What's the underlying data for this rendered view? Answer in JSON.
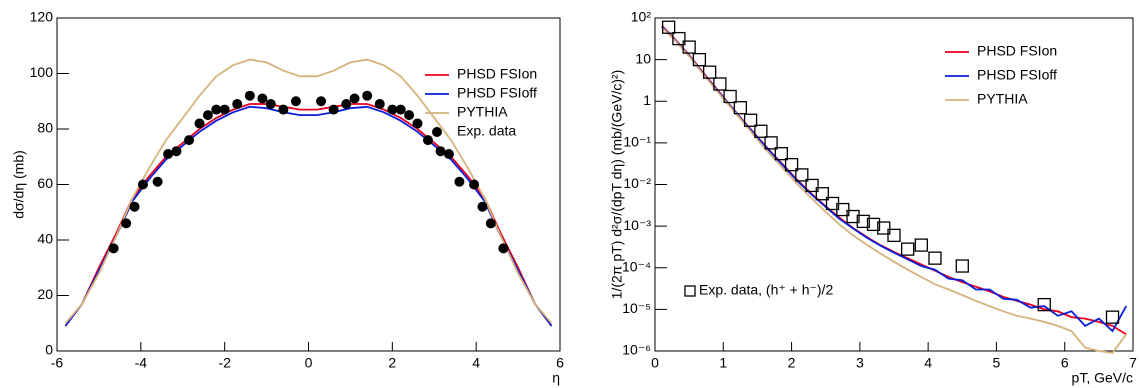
{
  "chart_data": [
    {
      "type": "line",
      "xlabel": "η",
      "ylabel": "dσ/dη (mb)",
      "xlim": [
        -6,
        6
      ],
      "xticks": [
        -6,
        -4,
        -2,
        0,
        2,
        4,
        6
      ],
      "ylim": [
        0,
        120
      ],
      "yticks": [
        0,
        20,
        40,
        60,
        80,
        100,
        120
      ],
      "legend": "upper right",
      "series": [
        {
          "name": "PHSD FSIon",
          "color": "#e8001c",
          "marker": "line",
          "x": [
            -5.8,
            -5.4,
            -5,
            -4.6,
            -4.2,
            -3.8,
            -3.4,
            -3,
            -2.6,
            -2.2,
            -1.8,
            -1.4,
            -1,
            -0.6,
            -0.2,
            0.2,
            0.6,
            1,
            1.4,
            1.8,
            2.2,
            2.6,
            3,
            3.4,
            3.8,
            4.2,
            4.6,
            5,
            5.4,
            5.8
          ],
          "values": [
            9,
            17,
            30,
            42,
            55,
            63,
            70,
            75,
            80,
            84,
            87,
            89,
            89,
            88,
            87,
            87,
            88,
            89,
            89,
            87,
            84,
            80,
            75,
            70,
            63,
            55,
            42,
            30,
            17,
            9
          ]
        },
        {
          "name": "PHSD FSIoff",
          "color": "#0a1ed8",
          "marker": "line",
          "x": [
            -5.8,
            -5.4,
            -5,
            -4.6,
            -4.2,
            -3.8,
            -3.4,
            -3,
            -2.6,
            -2.2,
            -1.8,
            -1.4,
            -1,
            -0.6,
            -0.2,
            0.2,
            0.6,
            1,
            1.4,
            1.8,
            2.2,
            2.6,
            3,
            3.4,
            3.8,
            4.2,
            4.6,
            5,
            5.4,
            5.8
          ],
          "values": [
            9,
            17,
            29,
            41,
            54,
            62,
            69,
            74,
            79,
            83,
            86,
            88,
            87.5,
            86,
            85,
            85,
            86,
            87.5,
            88,
            86,
            83,
            79,
            74,
            69,
            62,
            54,
            41,
            29,
            17,
            9
          ]
        },
        {
          "name": "PYTHIA",
          "color": "#d6b27c",
          "marker": "line",
          "x": [
            -5.8,
            -5.4,
            -5,
            -4.6,
            -4.2,
            -3.8,
            -3.4,
            -3,
            -2.6,
            -2.2,
            -1.8,
            -1.4,
            -1,
            -0.6,
            -0.2,
            0.2,
            0.6,
            1,
            1.4,
            1.8,
            2.2,
            2.6,
            3,
            3.4,
            3.8,
            4.2,
            4.6,
            5,
            5.4,
            5.8
          ],
          "values": [
            10,
            17,
            28,
            41,
            55,
            66,
            76,
            84,
            92,
            99,
            103,
            105,
            104,
            101,
            99,
            99,
            101,
            104,
            105,
            103,
            99,
            92,
            84,
            76,
            66,
            55,
            41,
            28,
            17,
            10
          ]
        },
        {
          "name": "Exp. data",
          "color": "#000000",
          "marker": "circle",
          "x": [
            -4.65,
            -4.35,
            -4.15,
            -3.95,
            -3.6,
            -3.35,
            -3.15,
            -2.85,
            -2.6,
            -2.4,
            -2.2,
            -2,
            -1.7,
            -1.4,
            -1.1,
            -0.9,
            -0.6,
            -0.3,
            0.3,
            0.6,
            0.9,
            1.1,
            1.4,
            1.7,
            2,
            2.2,
            2.4,
            2.6,
            2.85,
            3.15,
            3.35,
            3.6,
            3.95,
            4.15,
            4.35,
            4.65
          ],
          "values": [
            37,
            46,
            52,
            60,
            61,
            71,
            72,
            76,
            82,
            85,
            87,
            87,
            89,
            92,
            91,
            89,
            87,
            90,
            90,
            87,
            89,
            91,
            92,
            89,
            87,
            87,
            85,
            82,
            76,
            72,
            71,
            61,
            60,
            52,
            46,
            37
          ]
        }
      ]
    },
    {
      "type": "line",
      "xlabel": "pT, GeV/c",
      "ylabel": "1/(2π pT) d²σ/(dpT dη) (mb/(GeV/c)²)",
      "xlim": [
        0,
        7
      ],
      "xticks": [
        0,
        1,
        2,
        3,
        4,
        5,
        6,
        7
      ],
      "ylim": [
        1e-06,
        100
      ],
      "log_y": true,
      "yticks": [
        {
          "value": 1e-06,
          "label": "10⁻⁶"
        },
        {
          "value": 1e-05,
          "label": "10⁻⁵"
        },
        {
          "value": 0.0001,
          "label": "10⁻⁴"
        },
        {
          "value": 0.001,
          "label": "10⁻³"
        },
        {
          "value": 0.01,
          "label": "10⁻²"
        },
        {
          "value": 0.1,
          "label": "10⁻¹"
        },
        1,
        10,
        {
          "value": 100,
          "label": "10²"
        }
      ],
      "legend": "upper right",
      "series": [
        {
          "name": "PHSD FSIon",
          "color": "#e8001c",
          "marker": "line",
          "x": [
            0.1,
            0.3,
            0.5,
            0.7,
            0.9,
            1.1,
            1.3,
            1.5,
            1.7,
            1.9,
            2.1,
            2.3,
            2.5,
            2.7,
            2.9,
            3.1,
            3.3,
            3.5,
            3.7,
            3.9,
            4.1,
            4.3,
            4.5,
            4.7,
            4.9,
            5.1,
            5.3,
            5.5,
            5.7,
            5.9,
            6.1,
            6.3,
            6.5,
            6.7,
            6.9
          ],
          "values": [
            65,
            30,
            13,
            5,
            2,
            0.8,
            0.33,
            0.14,
            0.06,
            0.027,
            0.012,
            0.0058,
            0.003,
            0.0016,
            0.0009,
            0.00055,
            0.00035,
            0.00024,
            0.00017,
            0.00012,
            8.5e-05,
            6e-05,
            4.5e-05,
            3.5e-05,
            2.7e-05,
            2e-05,
            1.6e-05,
            1.3e-05,
            1e-05,
            9e-06,
            6.5e-06,
            6e-06,
            5e-06,
            4e-06,
            2.5e-06
          ]
        },
        {
          "name": "PHSD FSIoff",
          "color": "#0a1ed8",
          "marker": "line",
          "x": [
            0.1,
            0.3,
            0.5,
            0.7,
            0.9,
            1.1,
            1.3,
            1.5,
            1.7,
            1.9,
            2.1,
            2.3,
            2.5,
            2.7,
            2.9,
            3.1,
            3.3,
            3.5,
            3.7,
            3.9,
            4.1,
            4.3,
            4.5,
            4.7,
            4.9,
            5.1,
            5.3,
            5.5,
            5.7,
            5.9,
            6.1,
            6.3,
            6.5,
            6.7,
            6.9
          ],
          "values": [
            63,
            29,
            12.5,
            4.8,
            1.9,
            0.78,
            0.32,
            0.135,
            0.058,
            0.026,
            0.0115,
            0.0056,
            0.0029,
            0.0015,
            0.00088,
            0.00053,
            0.00034,
            0.00023,
            0.00016,
            0.00011,
            9e-05,
            5.5e-05,
            5e-05,
            3e-05,
            3e-05,
            1.8e-05,
            1.7e-05,
            1.1e-05,
            1.2e-05,
            7e-06,
            9e-06,
            4e-06,
            6e-06,
            3e-06,
            1.2e-05
          ]
        },
        {
          "name": "PYTHIA",
          "color": "#d6b27c",
          "marker": "line",
          "x": [
            0.1,
            0.3,
            0.5,
            0.7,
            0.9,
            1.1,
            1.3,
            1.5,
            1.7,
            1.9,
            2.1,
            2.3,
            2.5,
            2.7,
            2.9,
            3.1,
            3.3,
            3.5,
            3.7,
            3.9,
            4.1,
            4.3,
            4.5,
            4.7,
            4.9,
            5.1,
            5.3,
            5.5,
            5.7,
            5.9,
            6.1,
            6.3,
            6.5,
            6.7,
            6.9
          ],
          "values": [
            60,
            28,
            12,
            4.6,
            1.8,
            0.74,
            0.3,
            0.12,
            0.05,
            0.022,
            0.0095,
            0.0045,
            0.0022,
            0.0011,
            0.0006,
            0.00036,
            0.00022,
            0.00014,
            9e-05,
            6e-05,
            4e-05,
            3e-05,
            2.2e-05,
            1.6e-05,
            1.2e-05,
            9e-06,
            7e-06,
            6e-06,
            5e-06,
            4e-06,
            3e-06,
            1.2e-06,
            1e-06,
            9e-07,
            2.5e-06
          ]
        },
        {
          "name": "Exp. data, (h⁺ + h⁻)/2",
          "color": "#000000",
          "marker": "square",
          "x": [
            0.2,
            0.35,
            0.5,
            0.65,
            0.8,
            0.95,
            1.1,
            1.25,
            1.4,
            1.55,
            1.7,
            1.85,
            2,
            2.15,
            2.3,
            2.45,
            2.6,
            2.75,
            2.9,
            3.05,
            3.2,
            3.35,
            3.5,
            3.7,
            3.9,
            4.1,
            4.5,
            5.7,
            6.7
          ],
          "values": [
            60,
            32,
            20,
            10,
            5,
            2.6,
            1.3,
            0.7,
            0.35,
            0.19,
            0.1,
            0.055,
            0.03,
            0.017,
            0.0095,
            0.006,
            0.0035,
            0.0025,
            0.0017,
            0.0013,
            0.0011,
            0.0009,
            0.0006,
            0.00028,
            0.00035,
            0.00017,
            0.00011,
            1.3e-05,
            6.5e-06
          ]
        }
      ]
    }
  ]
}
